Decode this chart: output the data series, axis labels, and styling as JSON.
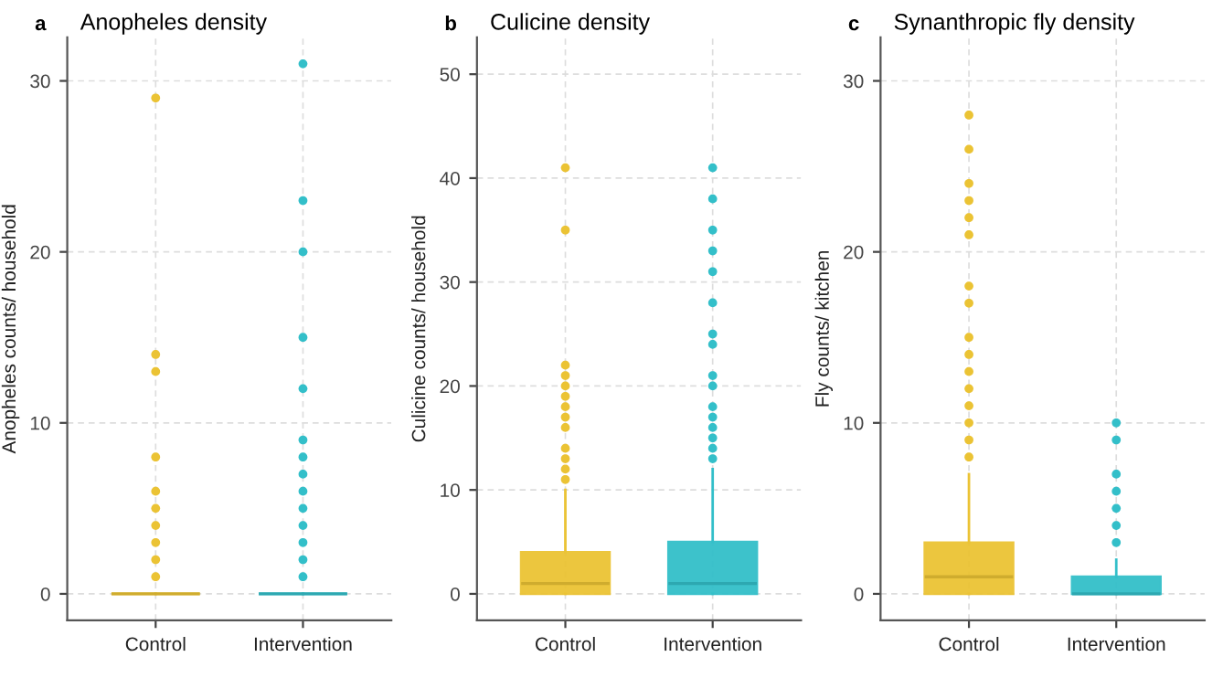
{
  "chart_data": [
    {
      "type": "box",
      "title": "Anopheles density",
      "annotations": [
        "a"
      ],
      "ylabel": "Anopheles counts/ household",
      "categories": [
        "Control",
        "Intervention"
      ],
      "colors": [
        "#ebc334",
        "#33bfc9"
      ],
      "ylim": [
        -1.55,
        32.55
      ],
      "yticks": [
        0,
        10,
        20,
        30
      ],
      "grid": true,
      "boxes": [
        {
          "low": 0,
          "q1": 0,
          "median": 0,
          "q3": 0,
          "high": 0,
          "outliers": [
            1,
            2,
            3,
            4,
            5,
            6,
            8,
            13,
            14,
            29
          ]
        },
        {
          "low": 0,
          "q1": 0,
          "median": 0,
          "q3": 0,
          "high": 0,
          "outliers": [
            1,
            2,
            3,
            4,
            5,
            6,
            7,
            8,
            9,
            12,
            15,
            20,
            23,
            31
          ]
        }
      ]
    },
    {
      "type": "box",
      "title": "Culicine density",
      "annotations": [
        "b"
      ],
      "ylabel": "Culicine counts/ household",
      "categories": [
        "Control",
        "Intervention"
      ],
      "colors": [
        "#ebc334",
        "#33bfc9"
      ],
      "ylim": [
        -2.55,
        53.55
      ],
      "yticks": [
        0,
        10,
        20,
        30,
        40,
        50
      ],
      "grid": true,
      "boxes": [
        {
          "low": 0,
          "q1": 0,
          "median": 1,
          "q3": 4,
          "high": 10,
          "outliers": [
            11,
            12,
            13,
            14,
            16,
            17,
            18,
            19,
            20,
            21,
            22,
            35,
            41
          ]
        },
        {
          "low": 0,
          "q1": 0,
          "median": 1,
          "q3": 5,
          "high": 12,
          "outliers": [
            13,
            14,
            15,
            16,
            17,
            18,
            20,
            21,
            24,
            25,
            28,
            31,
            33,
            35,
            38,
            41
          ]
        }
      ]
    },
    {
      "type": "box",
      "title": "Synanthropic fly density",
      "annotations": [
        "c"
      ],
      "ylabel": "Fly counts/ kitchen",
      "categories": [
        "Control",
        "Intervention"
      ],
      "colors": [
        "#ebc334",
        "#33bfc9"
      ],
      "ylim": [
        -1.55,
        32.55
      ],
      "yticks": [
        0,
        10,
        20,
        30
      ],
      "grid": true,
      "boxes": [
        {
          "low": 0,
          "q1": 0,
          "median": 1,
          "q3": 3,
          "high": 7,
          "outliers": [
            8,
            9,
            10,
            11,
            12,
            13,
            14,
            15,
            17,
            18,
            21,
            22,
            23,
            24,
            26,
            28
          ]
        },
        {
          "low": 0,
          "q1": 0,
          "median": 0,
          "q3": 1,
          "high": 2,
          "outliers": [
            3,
            4,
            5,
            6,
            7,
            9,
            10
          ]
        }
      ]
    }
  ]
}
